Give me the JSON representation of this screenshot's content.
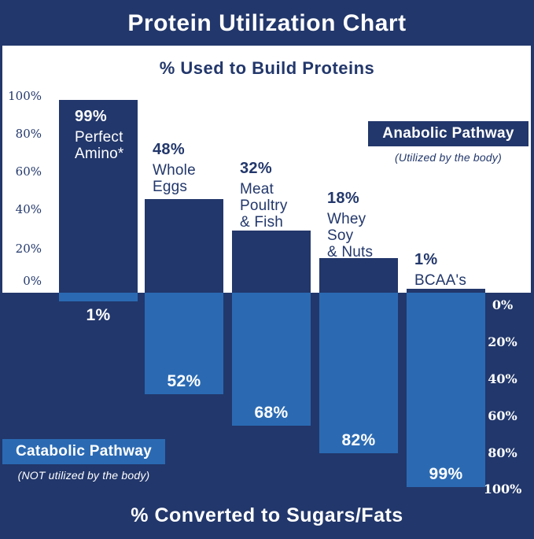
{
  "title": "Protein Utilization Chart",
  "upper_section": {
    "heading": "% Used to Build Proteins",
    "axis_ticks": [
      "100%",
      "80%",
      "60%",
      "40%",
      "20%",
      "0%"
    ]
  },
  "lower_section": {
    "heading": "% Converted to Sugars/Fats",
    "axis_ticks": [
      "0%",
      "20%",
      "40%",
      "60%",
      "80%",
      "100%"
    ]
  },
  "legend": {
    "anabolic": {
      "label": "Anabolic Pathway",
      "caption": "(Utilized by the body)"
    },
    "catabolic": {
      "label": "Catabolic Pathway",
      "caption": "(NOT utilized by the body)"
    }
  },
  "bars": [
    {
      "pct_up": "99%",
      "lines": [
        "Perfect",
        "Amino*"
      ],
      "pct_down": "1%"
    },
    {
      "pct_up": "48%",
      "lines": [
        "Whole",
        "Eggs"
      ],
      "pct_down": "52%"
    },
    {
      "pct_up": "32%",
      "lines": [
        "Meat",
        "Poultry",
        "& Fish"
      ],
      "pct_down": "68%"
    },
    {
      "pct_up": "18%",
      "lines": [
        "Whey",
        "Soy",
        "& Nuts"
      ],
      "pct_down": "82%"
    },
    {
      "pct_up": "1%",
      "lines": [
        "BCAA's"
      ],
      "pct_down": "99%"
    }
  ],
  "colors": {
    "navy": "#22376b",
    "light_blue": "#2b6ab3",
    "white": "#ffffff"
  },
  "chart_data": {
    "type": "bar",
    "title": "Protein Utilization Chart",
    "categories": [
      "Perfect Amino*",
      "Whole Eggs",
      "Meat Poultry & Fish",
      "Whey Soy & Nuts",
      "BCAA's"
    ],
    "series": [
      {
        "name": "Anabolic Pathway (Utilized by the body)",
        "direction": "up",
        "axis_label": "% Used to Build Proteins",
        "values": [
          99,
          48,
          32,
          18,
          1
        ],
        "color": "#22376b"
      },
      {
        "name": "Catabolic Pathway (NOT utilized by the body)",
        "direction": "down",
        "axis_label": "% Converted to Sugars/Fats",
        "values": [
          1,
          52,
          68,
          82,
          99
        ],
        "color": "#2b6ab3"
      }
    ],
    "ylim": [
      0,
      100
    ],
    "grid": false,
    "legend_position": "inline-boxes"
  }
}
